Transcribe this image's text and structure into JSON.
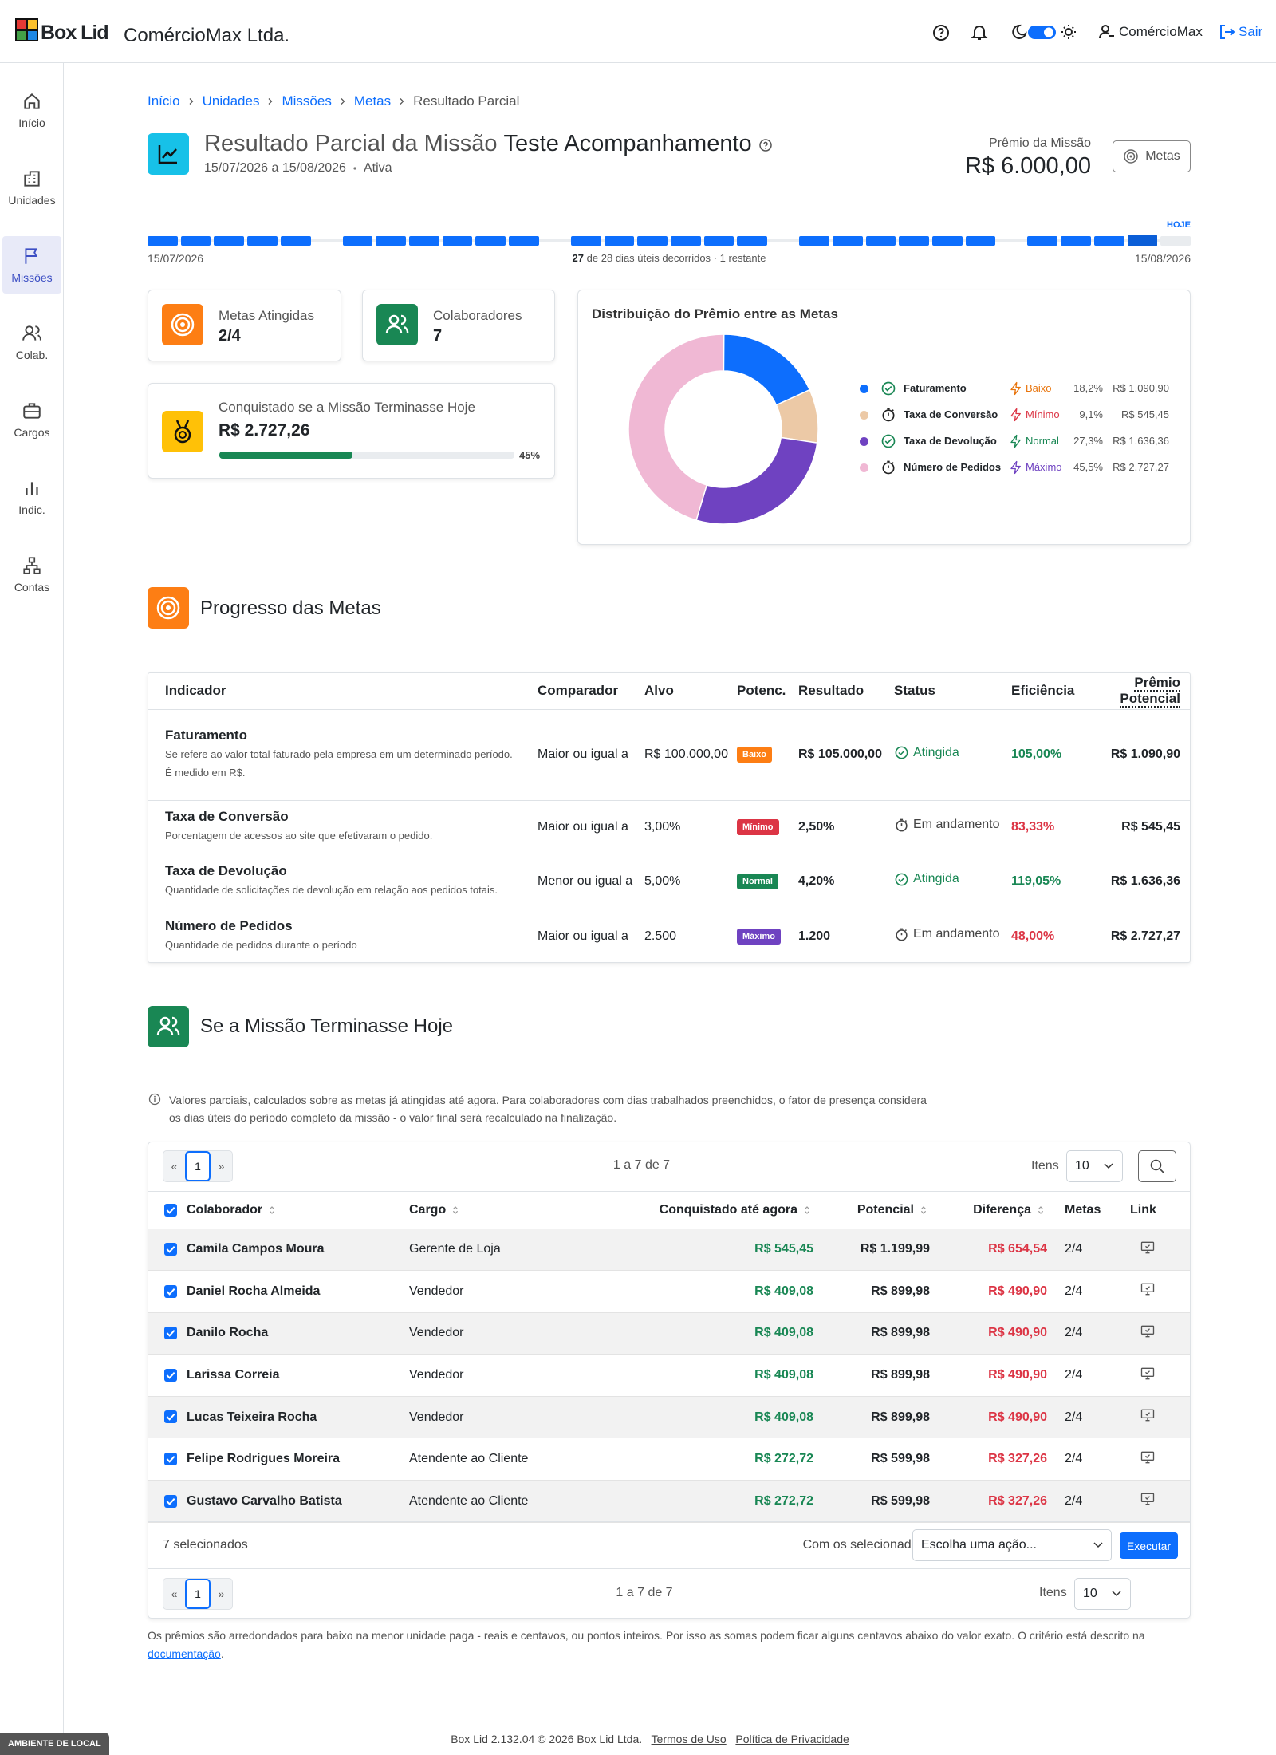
{
  "header": {
    "brand": "Box Lid",
    "company": "ComércioMax Ltda.",
    "user": "ComércioMax",
    "logout": "Sair"
  },
  "sidebar": {
    "items": [
      "Início",
      "Unidades",
      "Missões",
      "Colab.",
      "Cargos",
      "Indic.",
      "Contas"
    ],
    "active": 2
  },
  "breadcrumb": [
    "Início",
    "Unidades",
    "Missões",
    "Metas",
    "Resultado Parcial"
  ],
  "mission": {
    "title_prefix": "Resultado Parcial da Missão",
    "name": "Teste Acompanhamento",
    "period": "15/07/2026 a 15/08/2026",
    "status": "Ativa",
    "prize_label": "Prêmio da Missão",
    "prize": "R$ 6.000,00",
    "metas_button": "Metas"
  },
  "timeline": {
    "start": "15/07/2026",
    "end": "15/08/2026",
    "today": "HOJE",
    "elapsed": 27,
    "of": "de",
    "total": 28,
    "rest": "dias úteis decorridos · 1 restante"
  },
  "summary": {
    "goals_label": "Metas Atingidas",
    "goals": "2/4",
    "people_label": "Colaboradores",
    "people": "7",
    "today_label": "Conquistado se a Missão Terminasse Hoje",
    "today_value": "R$ 2.727,26",
    "progress": 45,
    "progress_label": "45%"
  },
  "distribution": {
    "title": "Distribuição do Prêmio entre as Metas",
    "items": [
      {
        "name": "Faturamento",
        "achieved": true,
        "level": "Baixo",
        "level_color": "#e8740c",
        "share": 18.2,
        "share_label": "18,2%",
        "amount": "R$ 1.090,90",
        "color": "#0d6efd"
      },
      {
        "name": "Taxa de Conversão",
        "achieved": false,
        "level": "Mínimo",
        "level_color": "#dc3545",
        "share": 9.1,
        "share_label": "9,1%",
        "amount": "R$ 545,45",
        "color": "#ecc9a6"
      },
      {
        "name": "Taxa de Devolução",
        "achieved": true,
        "level": "Normal",
        "level_color": "#198754",
        "share": 27.3,
        "share_label": "27,3%",
        "amount": "R$ 1.636,36",
        "color": "#6f42c1"
      },
      {
        "name": "Número de Pedidos",
        "achieved": false,
        "level": "Máximo",
        "level_color": "#6f42c1",
        "share": 45.5,
        "share_label": "45,5%",
        "amount": "R$ 2.727,27",
        "color": "#f0b8d4"
      }
    ]
  },
  "goals": {
    "title": "Progresso das Metas",
    "columns": [
      "Indicador",
      "Comparador",
      "Alvo",
      "Potenc.",
      "Resultado",
      "Status",
      "Eficiência",
      "Prêmio Potencial"
    ],
    "rows": [
      {
        "name": "Faturamento",
        "description": [
          "Se refere ao valor total faturado pela empresa em um determinado período.",
          "É medido em R$."
        ],
        "comparator": "Maior ou igual a",
        "target": "R$ 100.000,00",
        "level": "Baixo",
        "level_color": "#fd7e14",
        "result": "R$ 105.000,00",
        "status": "Atingida",
        "achieved": true,
        "efficiency": "105,00%",
        "efficiency_color": "#198754",
        "prize": "R$ 1.090,90"
      },
      {
        "name": "Taxa de Conversão",
        "description": [
          "Porcentagem de acessos ao site que efetivaram o pedido."
        ],
        "comparator": "Maior ou igual a",
        "target": "3,00%",
        "level": "Mínimo",
        "level_color": "#dc3545",
        "result": "2,50%",
        "status": "Em andamento",
        "achieved": false,
        "efficiency": "83,33%",
        "efficiency_color": "#dc3545",
        "prize": "R$ 545,45"
      },
      {
        "name": "Taxa de Devolução",
        "description": [
          "Quantidade de solicitações de devolução em relação aos pedidos totais."
        ],
        "comparator": "Menor ou igual a",
        "target": "5,00%",
        "level": "Normal",
        "level_color": "#198754",
        "result": "4,20%",
        "status": "Atingida",
        "achieved": true,
        "efficiency": "119,05%",
        "efficiency_color": "#198754",
        "prize": "R$ 1.636,36"
      },
      {
        "name": "Número de Pedidos",
        "description": [
          "Quantidade de pedidos durante o período"
        ],
        "comparator": "Maior ou igual a",
        "target": "2.500",
        "level": "Máximo",
        "level_color": "#6f42c1",
        "result": "1.200",
        "status": "Em andamento",
        "achieved": false,
        "efficiency": "48,00%",
        "efficiency_color": "#dc3545",
        "prize": "R$ 2.727,27"
      }
    ]
  },
  "simulation": {
    "title": "Se a Missão Terminasse Hoje",
    "note": "Valores parciais, calculados sobre as metas já atingidas até agora. Para colaboradores com dias trabalhados preenchidos, o fator de presença considera os dias úteis do período completo da missão - o valor final será recalculado na finalização.",
    "prev": "«",
    "page": "1",
    "next": "»",
    "range": "1 a 7 de 7",
    "items_label": "Itens",
    "page_size": "10",
    "columns": [
      "Colaborador",
      "Cargo",
      "Conquistado até agora",
      "Potencial",
      "Diferença",
      "Metas",
      "Link"
    ],
    "rows": [
      {
        "name": "Camila Campos Moura",
        "role": "Gerente de Loja",
        "earned": "R$ 545,45",
        "potential": "R$ 1.199,99",
        "difference": "R$ 654,54",
        "goals": "2/4"
      },
      {
        "name": "Daniel Rocha Almeida",
        "role": "Vendedor",
        "earned": "R$ 409,08",
        "potential": "R$ 899,98",
        "difference": "R$ 490,90",
        "goals": "2/4"
      },
      {
        "name": "Danilo Rocha",
        "role": "Vendedor",
        "earned": "R$ 409,08",
        "potential": "R$ 899,98",
        "difference": "R$ 490,90",
        "goals": "2/4"
      },
      {
        "name": "Larissa Correia",
        "role": "Vendedor",
        "earned": "R$ 409,08",
        "potential": "R$ 899,98",
        "difference": "R$ 490,90",
        "goals": "2/4"
      },
      {
        "name": "Lucas Teixeira Rocha",
        "role": "Vendedor",
        "earned": "R$ 409,08",
        "potential": "R$ 899,98",
        "difference": "R$ 490,90",
        "goals": "2/4"
      },
      {
        "name": "Felipe Rodrigues Moreira",
        "role": "Atendente ao Cliente",
        "earned": "R$ 272,72",
        "potential": "R$ 599,98",
        "difference": "R$ 327,26",
        "goals": "2/4"
      },
      {
        "name": "Gustavo Carvalho Batista",
        "role": "Atendente ao Cliente",
        "earned": "R$ 272,72",
        "potential": "R$ 599,98",
        "difference": "R$ 327,26",
        "goals": "2/4"
      }
    ],
    "selected": "7 selecionados",
    "bulk_label": "Com os selecionados:",
    "bulk_placeholder": "Escolha uma ação...",
    "bulk_button": "Executar"
  },
  "footnote": {
    "text": "Os prêmios são arredondados para baixo na menor unidade paga - reais e centavos, ou pontos inteiros. Por isso as somas podem ficar alguns centavos abaixo do valor exato. O critério está descrito na",
    "link": "documentação",
    "end": "."
  },
  "footer": {
    "copyright": "Box Lid 2.132.04 © 2026 Box Lid Ltda.",
    "terms": "Termos de Uso",
    "privacy": "Política de Privacidade",
    "environment": "AMBIENTE DE LOCAL"
  }
}
